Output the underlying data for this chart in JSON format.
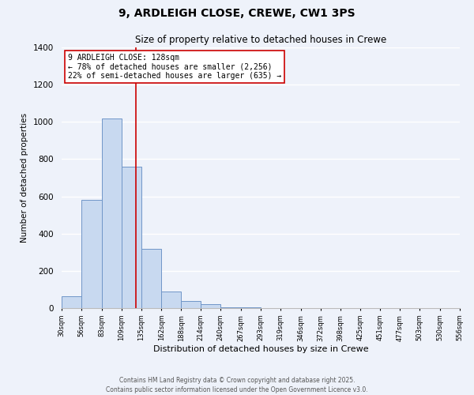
{
  "title": "9, ARDLEIGH CLOSE, CREWE, CW1 3PS",
  "subtitle": "Size of property relative to detached houses in Crewe",
  "xlabel": "Distribution of detached houses by size in Crewe",
  "ylabel": "Number of detached properties",
  "bar_color": "#c8d9f0",
  "bar_edge_color": "#7096c8",
  "background_color": "#eef2fa",
  "grid_color": "#ffffff",
  "bin_edges": [
    30,
    56,
    83,
    109,
    135,
    162,
    188,
    214,
    240,
    267,
    293,
    319,
    346,
    372,
    398,
    425,
    451,
    477,
    503,
    530,
    556
  ],
  "bar_heights": [
    65,
    580,
    1020,
    760,
    320,
    90,
    40,
    20,
    5,
    5,
    0,
    0,
    0,
    0,
    0,
    0,
    0,
    0,
    0,
    0
  ],
  "property_size": 128,
  "vline_color": "#cc0000",
  "annotation_line1": "9 ARDLEIGH CLOSE: 128sqm",
  "annotation_line2": "← 78% of detached houses are smaller (2,256)",
  "annotation_line3": "22% of semi-detached houses are larger (635) →",
  "annotation_box_color": "#ffffff",
  "annotation_box_edge": "#cc0000",
  "ylim": [
    0,
    1400
  ],
  "yticks": [
    0,
    200,
    400,
    600,
    800,
    1000,
    1200,
    1400
  ],
  "footer_line1": "Contains HM Land Registry data © Crown copyright and database right 2025.",
  "footer_line2": "Contains public sector information licensed under the Open Government Licence v3.0.",
  "tick_labels": [
    "30sqm",
    "56sqm",
    "83sqm",
    "109sqm",
    "135sqm",
    "162sqm",
    "188sqm",
    "214sqm",
    "240sqm",
    "267sqm",
    "293sqm",
    "319sqm",
    "346sqm",
    "372sqm",
    "398sqm",
    "425sqm",
    "451sqm",
    "477sqm",
    "503sqm",
    "530sqm",
    "556sqm"
  ]
}
